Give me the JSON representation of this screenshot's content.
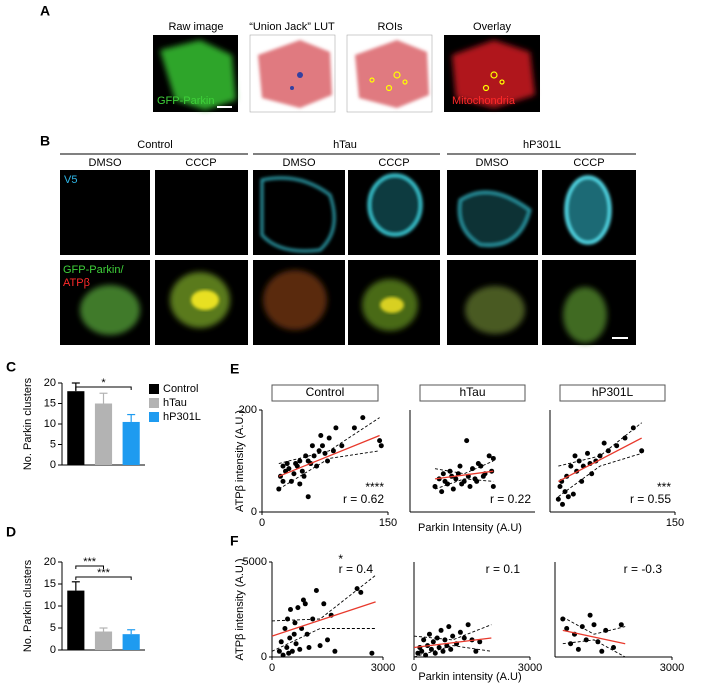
{
  "panel_labels": [
    "A",
    "B",
    "C",
    "D",
    "E",
    "F"
  ],
  "panel_a": {
    "titles": [
      "Raw image",
      "“Union Jack” LUT",
      "ROIs",
      "Overlay"
    ],
    "raw_label": "GFP-Parkin",
    "overlay_label": "Mitochondria"
  },
  "panel_b": {
    "groups": [
      {
        "name": "Control",
        "treatments": [
          "DMSO",
          "CCCP"
        ]
      },
      {
        "name": "hTau",
        "treatments": [
          "DMSO",
          "CCCP"
        ]
      },
      {
        "name": "hP301L",
        "treatments": [
          "DMSO",
          "CCCP"
        ]
      }
    ],
    "row_labels": {
      "v5": "V5",
      "gfp": "GFP-Parkin/",
      "atp": "ATPβ"
    }
  },
  "chart_data": [
    {
      "type": "bar",
      "categories": [
        "Control",
        "hTau",
        "hP301L"
      ],
      "values": [
        18,
        15,
        10.5
      ],
      "errors": [
        2,
        2.5,
        1.8
      ],
      "colors": [
        "#000000",
        "#b3b3b3",
        "#1e9bf0"
      ],
      "ylim": [
        0,
        20
      ],
      "yticks": [
        0,
        5,
        10,
        15,
        20
      ],
      "ylabel": "No. Parkin clusters",
      "legend": true,
      "annotations": [
        {
          "text": "*",
          "between": [
            0,
            2
          ]
        }
      ]
    },
    {
      "type": "bar",
      "values": [
        13.5,
        4.2,
        3.6
      ],
      "errors": [
        2,
        0.8,
        1
      ],
      "colors": [
        "#000000",
        "#b3b3b3",
        "#1e9bf0"
      ],
      "ylim": [
        0,
        20
      ],
      "yticks": [
        0,
        5,
        10,
        15,
        20
      ],
      "ylabel": "No. Parkin clusters",
      "annotations": [
        {
          "text": "***",
          "between": [
            0,
            1
          ]
        },
        {
          "text": "***",
          "between": [
            0,
            2
          ]
        }
      ]
    },
    {
      "type": "scatter",
      "title": "Control",
      "ylabel": "ATPβ intensity (A.U.)",
      "xlim": [
        0,
        150
      ],
      "ylim": [
        0,
        200
      ],
      "xticks": [
        0,
        150
      ],
      "yticks": [
        0,
        200
      ],
      "annotations": [
        "r = 0.62",
        "****"
      ],
      "series": [
        {
          "kind": "points",
          "color": "#000000",
          "x": [
            20,
            22,
            25,
            25,
            28,
            30,
            32,
            35,
            38,
            40,
            42,
            45,
            45,
            48,
            50,
            52,
            55,
            55,
            58,
            60,
            62,
            65,
            68,
            70,
            72,
            75,
            78,
            80,
            85,
            88,
            95,
            110,
            120,
            140,
            142
          ],
          "values": [
            45,
            70,
            90,
            60,
            80,
            95,
            85,
            60,
            75,
            95,
            90,
            100,
            55,
            80,
            70,
            110,
            100,
            30,
            95,
            130,
            110,
            90,
            120,
            150,
            130,
            115,
            100,
            145,
            120,
            165,
            130,
            165,
            185,
            140,
            130
          ]
        },
        {
          "kind": "line",
          "color": "#e8392c",
          "x": [
            20,
            140
          ],
          "values": [
            70,
            150
          ]
        },
        {
          "kind": "line",
          "style": "dashed",
          "color": "#000000",
          "x": [
            20,
            80,
            140
          ],
          "values": [
            95,
            120,
            185
          ]
        },
        {
          "kind": "line",
          "style": "dashed",
          "color": "#000000",
          "x": [
            20,
            80,
            140
          ],
          "values": [
            45,
            105,
            120
          ]
        }
      ]
    },
    {
      "type": "scatter",
      "title": "hTau",
      "xlabel": "Parkin Intensity (A.U)",
      "xlim": [
        0,
        150
      ],
      "ylim": [
        0,
        200
      ],
      "annotations": [
        "r = 0.22"
      ],
      "series": [
        {
          "kind": "points",
          "color": "#000000",
          "x": [
            30,
            35,
            38,
            40,
            42,
            45,
            48,
            50,
            52,
            55,
            58,
            60,
            62,
            65,
            68,
            70,
            72,
            75,
            78,
            80,
            82,
            85,
            88,
            90,
            95,
            98,
            100,
            100
          ],
          "values": [
            50,
            65,
            40,
            75,
            60,
            55,
            80,
            70,
            45,
            65,
            75,
            90,
            55,
            60,
            140,
            70,
            50,
            85,
            65,
            60,
            95,
            90,
            70,
            75,
            110,
            80,
            105,
            50
          ]
        },
        {
          "kind": "line",
          "color": "#e8392c",
          "x": [
            30,
            100
          ],
          "values": [
            65,
            80
          ]
        },
        {
          "kind": "line",
          "style": "dashed",
          "color": "#000000",
          "x": [
            30,
            65,
            100
          ],
          "values": [
            85,
            75,
            100
          ]
        },
        {
          "kind": "line",
          "style": "dashed",
          "color": "#000000",
          "x": [
            30,
            65,
            100
          ],
          "values": [
            45,
            65,
            60
          ]
        }
      ]
    },
    {
      "type": "scatter",
      "title": "hP301L",
      "xlim": [
        0,
        150
      ],
      "ylim": [
        0,
        200
      ],
      "xticks": [
        150
      ],
      "annotations": [
        "r = 0.55",
        "***"
      ],
      "series": [
        {
          "kind": "points",
          "color": "#000000",
          "x": [
            10,
            12,
            14,
            15,
            18,
            20,
            22,
            25,
            28,
            30,
            32,
            35,
            38,
            40,
            45,
            48,
            50,
            55,
            60,
            65,
            70,
            80,
            90,
            100,
            110
          ],
          "values": [
            25,
            50,
            60,
            15,
            40,
            70,
            30,
            90,
            35,
            110,
            80,
            100,
            60,
            90,
            115,
            95,
            75,
            100,
            110,
            135,
            120,
            130,
            145,
            165,
            120
          ]
        },
        {
          "kind": "line",
          "color": "#e8392c",
          "x": [
            10,
            110
          ],
          "values": [
            60,
            145
          ]
        },
        {
          "kind": "line",
          "style": "dashed",
          "color": "#000000",
          "x": [
            10,
            60,
            110
          ],
          "values": [
            90,
            110,
            175
          ]
        },
        {
          "kind": "line",
          "style": "dashed",
          "color": "#000000",
          "x": [
            10,
            60,
            110
          ],
          "values": [
            30,
            90,
            115
          ]
        }
      ]
    },
    {
      "type": "scatter",
      "ylabel": "ATPβ intensity (A.U.)",
      "xlim": [
        0,
        3000
      ],
      "ylim": [
        0,
        5000
      ],
      "xticks": [
        0,
        3000
      ],
      "yticks": [
        0,
        5000
      ],
      "annotations": [
        "r = 0.4",
        "*"
      ],
      "series": [
        {
          "kind": "points",
          "color": "#000000",
          "x": [
            200,
            250,
            300,
            350,
            400,
            420,
            450,
            480,
            500,
            550,
            600,
            620,
            650,
            700,
            750,
            800,
            850,
            900,
            950,
            1000,
            1100,
            1200,
            1300,
            1400,
            1500,
            1600,
            1700,
            2300,
            2400,
            2700
          ],
          "values": [
            300,
            800,
            100,
            1500,
            500,
            2000,
            200,
            1000,
            2500,
            300,
            1200,
            1800,
            700,
            2600,
            400,
            1500,
            3000,
            2800,
            1200,
            500,
            2000,
            3500,
            600,
            2800,
            900,
            2200,
            300,
            3600,
            3400,
            200
          ]
        },
        {
          "kind": "line",
          "color": "#e8392c",
          "x": [
            0,
            2800
          ],
          "values": [
            1100,
            2900
          ]
        },
        {
          "kind": "line",
          "style": "dashed",
          "color": "#000000",
          "x": [
            0,
            1300,
            2800
          ],
          "values": [
            1900,
            2000,
            4300
          ]
        },
        {
          "kind": "line",
          "style": "dashed",
          "color": "#000000",
          "x": [
            0,
            1300,
            2800
          ],
          "values": [
            300,
            1500,
            1500
          ]
        }
      ]
    },
    {
      "type": "scatter",
      "xlabel": "Parkin intensity (A.U)",
      "xlim": [
        0,
        3000
      ],
      "ylim": [
        0,
        5000
      ],
      "xticks": [
        0,
        3000
      ],
      "annotations": [
        "r = 0.1"
      ],
      "series": [
        {
          "kind": "points",
          "color": "#000000",
          "x": [
            100,
            150,
            200,
            250,
            300,
            350,
            400,
            450,
            500,
            550,
            600,
            650,
            700,
            750,
            800,
            850,
            900,
            950,
            1000,
            1100,
            1200,
            1300,
            1400,
            1500,
            1600,
            1700
          ],
          "values": [
            200,
            500,
            300,
            900,
            100,
            600,
            1200,
            400,
            800,
            200,
            1000,
            500,
            1400,
            300,
            900,
            600,
            1600,
            400,
            1100,
            700,
            1300,
            1000,
            1700,
            900,
            300,
            800
          ]
        },
        {
          "kind": "line",
          "color": "#e8392c",
          "x": [
            0,
            2000
          ],
          "values": [
            500,
            1000
          ]
        },
        {
          "kind": "line",
          "style": "dashed",
          "color": "#000000",
          "x": [
            0,
            1000,
            2000
          ],
          "values": [
            1100,
            900,
            1700
          ]
        },
        {
          "kind": "line",
          "style": "dashed",
          "color": "#000000",
          "x": [
            0,
            1000,
            2000
          ],
          "values": [
            0,
            600,
            300
          ]
        }
      ]
    },
    {
      "type": "scatter",
      "xlim": [
        0,
        3000
      ],
      "ylim": [
        0,
        5000
      ],
      "xticks": [
        3000
      ],
      "annotations": [
        "r = -0.3"
      ],
      "series": [
        {
          "kind": "points",
          "color": "#000000",
          "x": [
            200,
            300,
            400,
            500,
            600,
            700,
            800,
            900,
            1000,
            1100,
            1200,
            1300,
            1500,
            1700
          ],
          "values": [
            2000,
            1500,
            700,
            1200,
            400,
            1600,
            900,
            2200,
            1700,
            800,
            300,
            1400,
            500,
            1700
          ]
        },
        {
          "kind": "line",
          "color": "#e8392c",
          "x": [
            200,
            1800
          ],
          "values": [
            1400,
            700
          ]
        },
        {
          "kind": "line",
          "style": "dashed",
          "color": "#000000",
          "x": [
            200,
            1000,
            1800
          ],
          "values": [
            2100,
            1200,
            1600
          ]
        },
        {
          "kind": "line",
          "style": "dashed",
          "color": "#000000",
          "x": [
            200,
            1000,
            1800
          ],
          "values": [
            700,
            900,
            0
          ]
        }
      ]
    }
  ]
}
